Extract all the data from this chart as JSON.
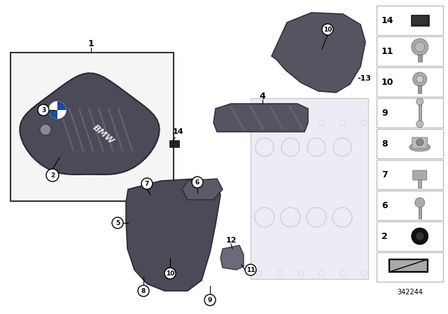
{
  "bg_color": "#ffffff",
  "part_number": "342244",
  "dark_gray": "#555560",
  "darker_gray": "#3a3a45",
  "light_gray": "#cccccc",
  "panel_box_color": "#ffffff",
  "inset_bg": "#f8f8f8",
  "right_panel_nums": [
    14,
    11,
    10,
    9,
    8,
    7,
    6,
    2
  ],
  "callout_r": 8,
  "callout_font": 6.5
}
